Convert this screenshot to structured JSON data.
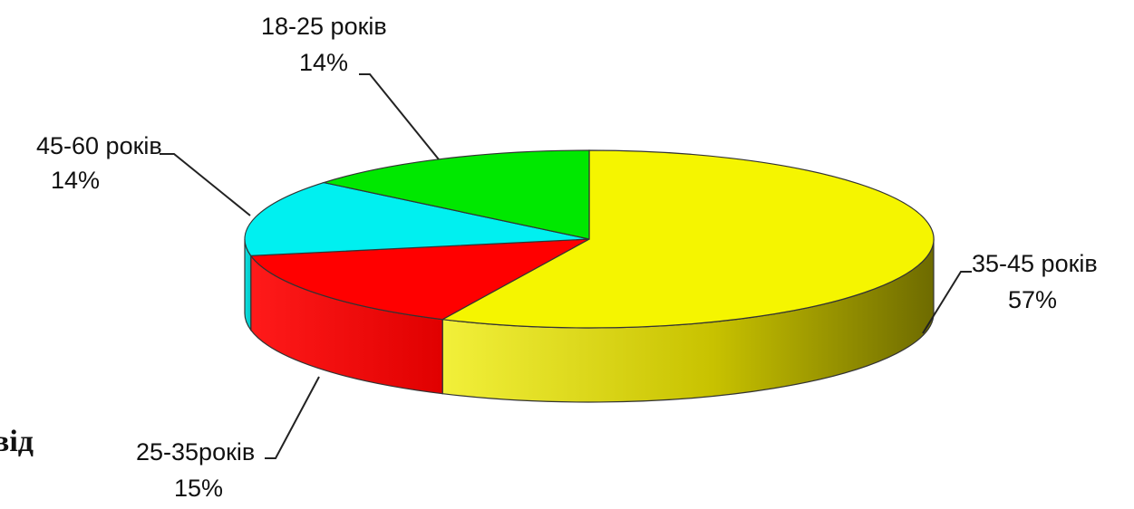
{
  "fragment": {
    "text": "від"
  },
  "chart_data": {
    "type": "pie",
    "style": "3d",
    "title": "",
    "categories": [
      "35-45 років",
      "25-35років",
      "45-60 років",
      "18-25 років"
    ],
    "values": [
      57,
      15,
      14,
      14
    ],
    "labels": [
      {
        "name": "35-45 років",
        "percent": "57%",
        "color": "#f5f500",
        "side_color": "#c9c400"
      },
      {
        "name": "25-35років",
        "percent": "15%",
        "color": "#ff0000",
        "side_color": "#e00000"
      },
      {
        "name": "45-60 років",
        "percent": "14%",
        "color": "#00f0f0",
        "side_color": "#00d0d0"
      },
      {
        "name": "18-25 років",
        "percent": "14%",
        "color": "#00e800",
        "side_color": "#00c400"
      }
    ],
    "legend": "none",
    "grid": false
  }
}
